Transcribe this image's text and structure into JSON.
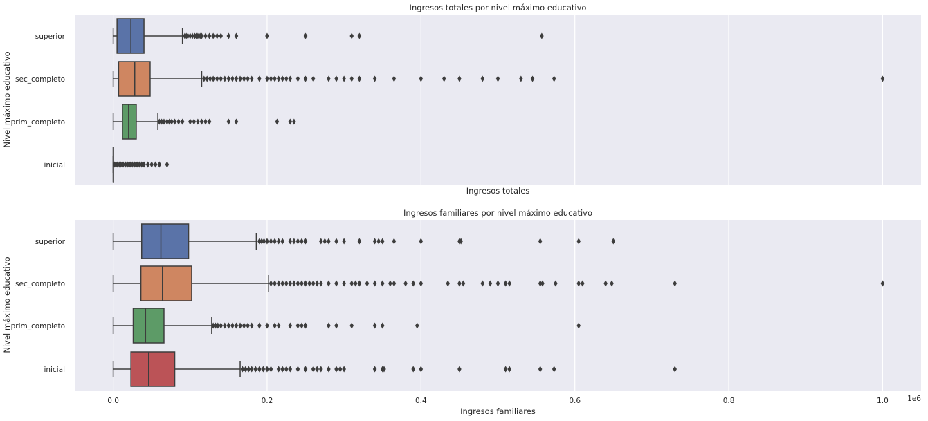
{
  "scale_note": "1e6",
  "chart_data": [
    {
      "type": "boxplot",
      "title": "Ingresos totales por nivel máximo educativo",
      "xlabel": "Ingresos totales",
      "ylabel": "Nivel máximo educativo",
      "xlim": [
        -0.05,
        1.05
      ],
      "x_scale_multiplier": 1000000,
      "grid": true,
      "categories": [
        "superior",
        "sec_completo",
        "prim_completo",
        "inicial"
      ],
      "colors": [
        "#5a73a8",
        "#cf8661",
        "#5d9b67",
        "#4a4a4a"
      ],
      "boxes": [
        {
          "category": "superior",
          "whisker_low": 0.0,
          "q1": 0.005,
          "median": 0.023,
          "q3": 0.04,
          "whisker_high": 0.09,
          "outliers": [
            0.093,
            0.095,
            0.097,
            0.1,
            0.103,
            0.106,
            0.108,
            0.11,
            0.113,
            0.115,
            0.12,
            0.125,
            0.13,
            0.135,
            0.14,
            0.15,
            0.16,
            0.2,
            0.25,
            0.31,
            0.32,
            0.557
          ]
        },
        {
          "category": "sec_completo",
          "whisker_low": 0.0,
          "q1": 0.007,
          "median": 0.028,
          "q3": 0.048,
          "whisker_high": 0.115,
          "outliers": [
            0.118,
            0.122,
            0.126,
            0.13,
            0.135,
            0.14,
            0.145,
            0.15,
            0.155,
            0.16,
            0.165,
            0.17,
            0.175,
            0.18,
            0.19,
            0.2,
            0.205,
            0.21,
            0.215,
            0.22,
            0.225,
            0.23,
            0.24,
            0.25,
            0.26,
            0.28,
            0.29,
            0.3,
            0.31,
            0.32,
            0.34,
            0.365,
            0.4,
            0.43,
            0.45,
            0.48,
            0.5,
            0.53,
            0.545,
            0.573,
            1.0
          ]
        },
        {
          "category": "prim_completo",
          "whisker_low": 0.0,
          "q1": 0.012,
          "median": 0.02,
          "q3": 0.03,
          "whisker_high": 0.058,
          "outliers": [
            0.06,
            0.063,
            0.066,
            0.07,
            0.073,
            0.076,
            0.08,
            0.085,
            0.09,
            0.1,
            0.105,
            0.11,
            0.115,
            0.12,
            0.125,
            0.15,
            0.16,
            0.213,
            0.23,
            0.235
          ]
        },
        {
          "category": "inicial",
          "whisker_low": 0.0,
          "q1": 0.0,
          "median": 0.0,
          "q3": 0.0,
          "whisker_high": 0.0,
          "outliers": [
            0.002,
            0.005,
            0.008,
            0.01,
            0.013,
            0.016,
            0.019,
            0.022,
            0.025,
            0.028,
            0.031,
            0.034,
            0.037,
            0.04,
            0.045,
            0.05,
            0.055,
            0.06,
            0.07
          ]
        }
      ]
    },
    {
      "type": "boxplot",
      "title": "Ingresos familiares por nivel máximo educativo",
      "xlabel": "Ingresos familiares",
      "ylabel": "Nivel máximo educativo",
      "xlim": [
        -0.05,
        1.05
      ],
      "x_scale_multiplier": 1000000,
      "x_ticks": [
        "0.0",
        "0.2",
        "0.4",
        "0.6",
        "0.8",
        "1.0"
      ],
      "grid": true,
      "categories": [
        "superior",
        "sec_completo",
        "prim_completo",
        "inicial"
      ],
      "colors": [
        "#5a73a8",
        "#cf8661",
        "#5d9b67",
        "#bb5357"
      ],
      "boxes": [
        {
          "category": "superior",
          "whisker_low": 0.0,
          "q1": 0.037,
          "median": 0.062,
          "q3": 0.098,
          "whisker_high": 0.186,
          "outliers": [
            0.19,
            0.193,
            0.196,
            0.2,
            0.205,
            0.21,
            0.215,
            0.22,
            0.23,
            0.235,
            0.24,
            0.245,
            0.25,
            0.27,
            0.275,
            0.28,
            0.29,
            0.3,
            0.32,
            0.34,
            0.345,
            0.35,
            0.365,
            0.4,
            0.45,
            0.452,
            0.555,
            0.605,
            0.65
          ]
        },
        {
          "category": "sec_completo",
          "whisker_low": 0.0,
          "q1": 0.036,
          "median": 0.064,
          "q3": 0.102,
          "whisker_high": 0.202,
          "outliers": [
            0.205,
            0.21,
            0.215,
            0.22,
            0.225,
            0.23,
            0.235,
            0.24,
            0.245,
            0.25,
            0.255,
            0.26,
            0.265,
            0.27,
            0.28,
            0.29,
            0.3,
            0.31,
            0.315,
            0.32,
            0.33,
            0.34,
            0.35,
            0.36,
            0.365,
            0.38,
            0.39,
            0.4,
            0.435,
            0.45,
            0.455,
            0.48,
            0.49,
            0.5,
            0.51,
            0.515,
            0.555,
            0.558,
            0.575,
            0.605,
            0.61,
            0.64,
            0.648,
            0.73,
            1.0
          ]
        },
        {
          "category": "prim_completo",
          "whisker_low": 0.0,
          "q1": 0.026,
          "median": 0.042,
          "q3": 0.066,
          "whisker_high": 0.128,
          "outliers": [
            0.13,
            0.133,
            0.136,
            0.14,
            0.145,
            0.15,
            0.155,
            0.16,
            0.165,
            0.17,
            0.175,
            0.18,
            0.19,
            0.2,
            0.21,
            0.215,
            0.23,
            0.24,
            0.245,
            0.25,
            0.28,
            0.29,
            0.31,
            0.34,
            0.35,
            0.395,
            0.605
          ]
        },
        {
          "category": "inicial",
          "whisker_low": 0.0,
          "q1": 0.023,
          "median": 0.046,
          "q3": 0.08,
          "whisker_high": 0.165,
          "outliers": [
            0.168,
            0.172,
            0.176,
            0.18,
            0.185,
            0.19,
            0.195,
            0.2,
            0.205,
            0.215,
            0.22,
            0.225,
            0.23,
            0.24,
            0.25,
            0.26,
            0.265,
            0.27,
            0.28,
            0.29,
            0.295,
            0.3,
            0.34,
            0.35,
            0.352,
            0.39,
            0.4,
            0.45,
            0.51,
            0.515,
            0.555,
            0.573,
            0.73
          ]
        }
      ]
    }
  ]
}
